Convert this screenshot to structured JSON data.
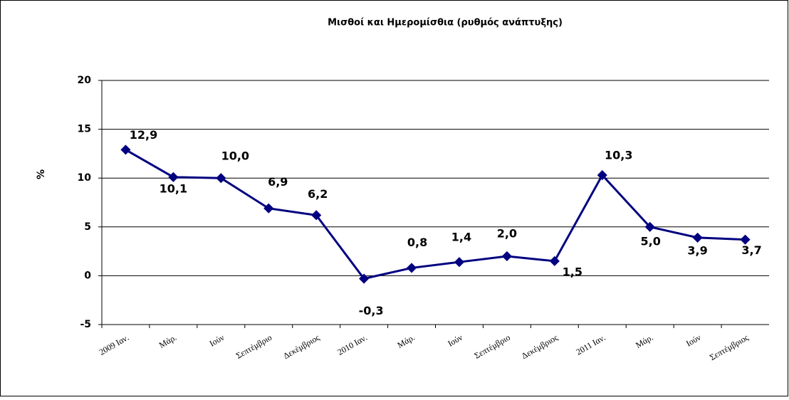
{
  "chart_data": {
    "type": "line",
    "title": "Μισθοί και Ημερομίσθια (ρυθμός ανάπτυξης)",
    "y_label": "%",
    "categories": [
      "2009 Ιαν.",
      "Μάρ.",
      "Ιούν",
      "Σεπτέμβριο",
      "Δεκέμβριος",
      "2010 Ιαν.",
      "Μάρ.",
      "Ιούν",
      "Σεπτέμβριο",
      "Δεκέμβριος",
      "2011 Ιαν.",
      "Μάρ.",
      "Ιούν",
      "Σεπτέμβριος"
    ],
    "series": [
      {
        "name": "Μισθοί και Ημερομίσθια",
        "color": "#000080",
        "values": [
          12.9,
          10.1,
          10.0,
          6.9,
          6.2,
          -0.3,
          0.8,
          1.4,
          2.0,
          1.5,
          10.3,
          5.0,
          3.9,
          3.7
        ],
        "value_labels": [
          "12,9",
          "10,1",
          "10,0",
          "6,9",
          "6,2",
          "-0,3",
          "0,8",
          "1,4",
          "2,0",
          "1,5",
          "10,3",
          "5,0",
          "3,9",
          "3,7"
        ]
      }
    ],
    "ylim": [
      -5,
      20
    ],
    "yticks": [
      -5,
      0,
      5,
      10,
      15,
      20
    ],
    "grid": true
  }
}
